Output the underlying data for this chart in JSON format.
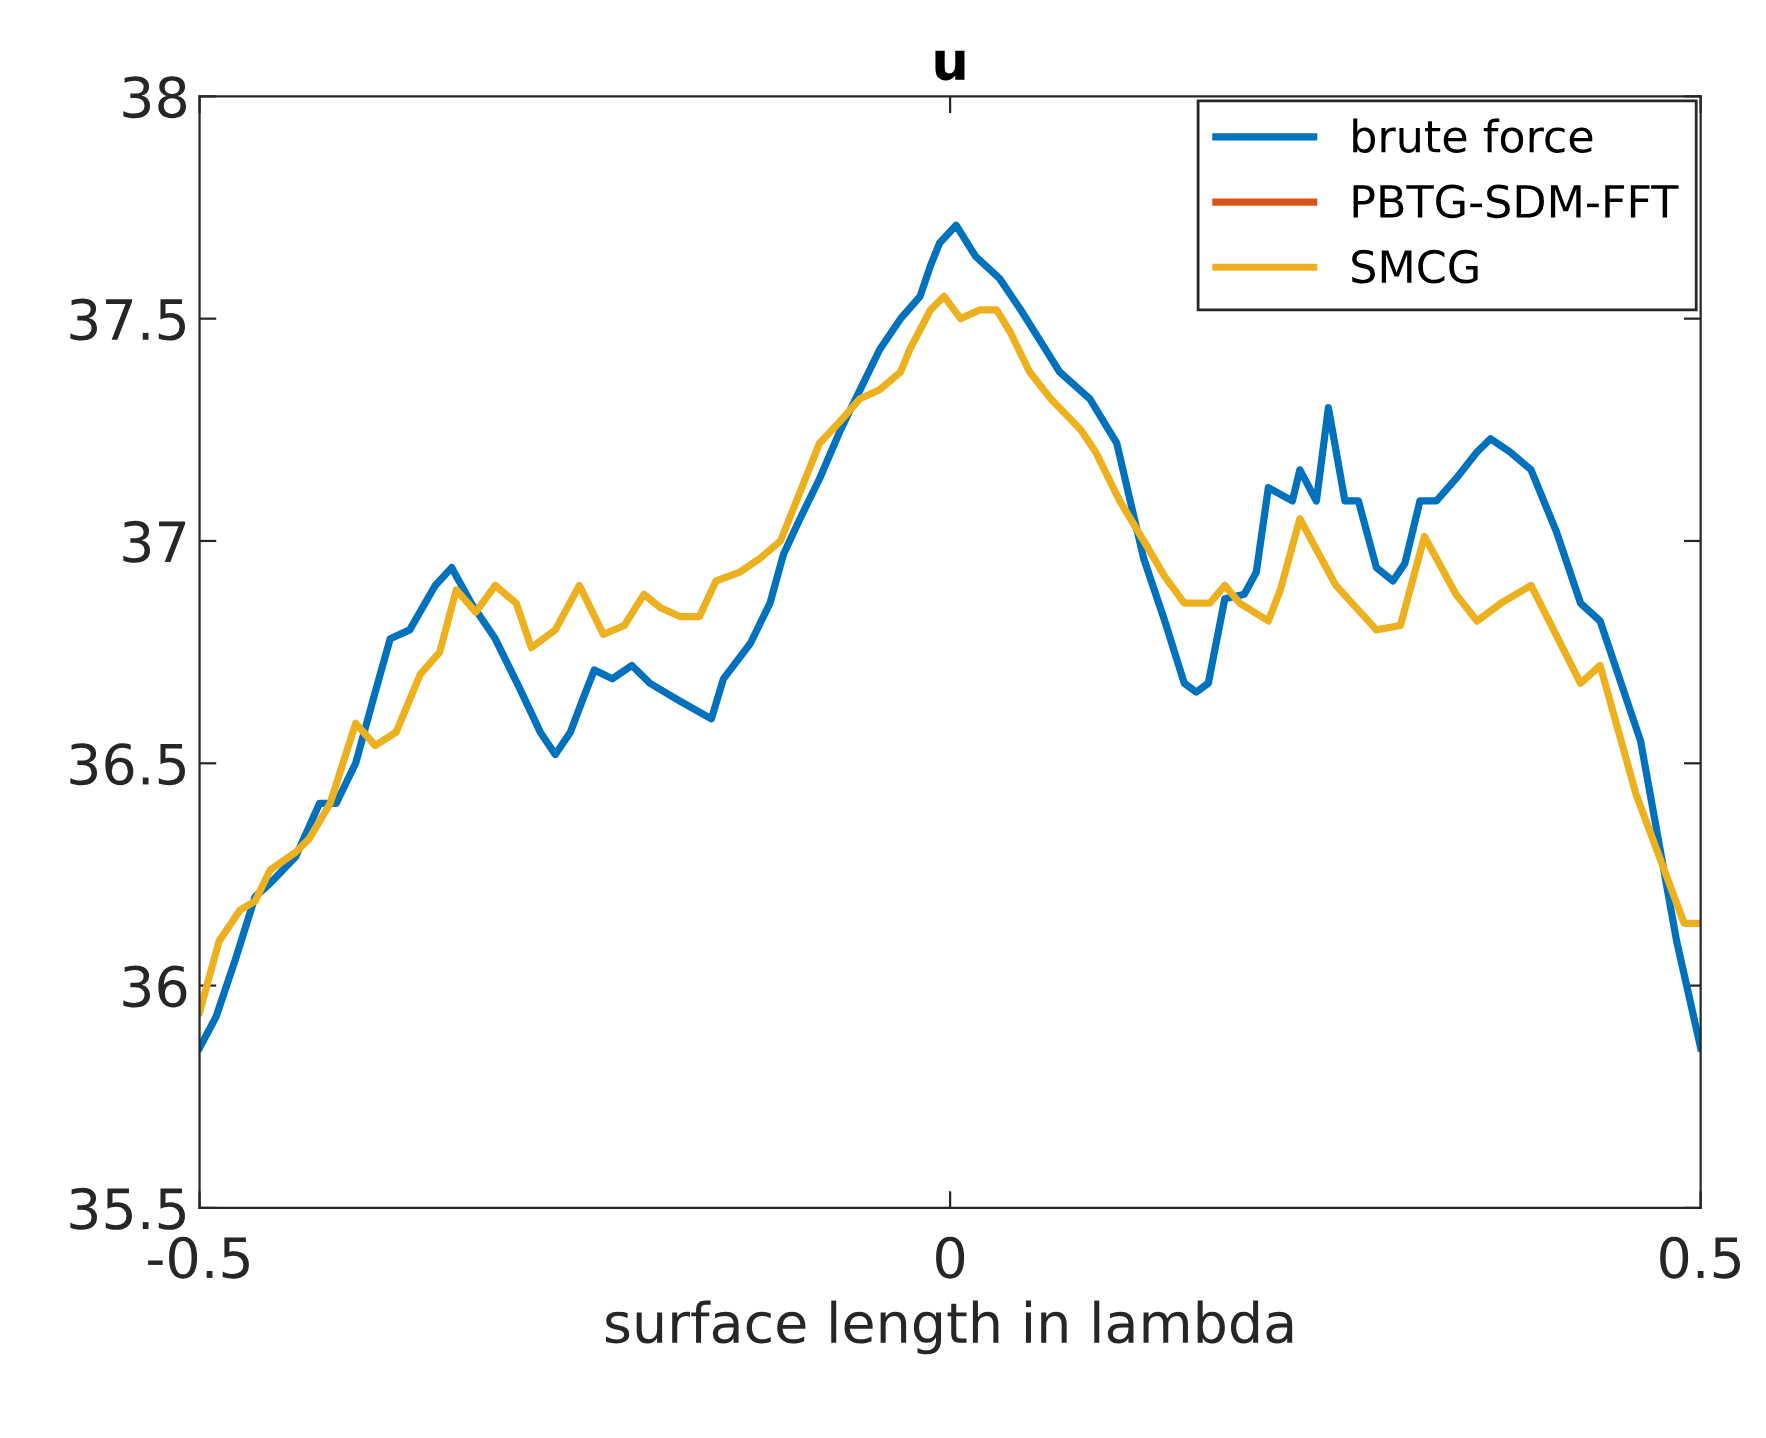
{
  "chart_data": {
    "type": "line",
    "title": "u",
    "xlabel": "surface length in lambda",
    "xlim": [
      -0.5,
      0.5
    ],
    "xticks": [
      -0.5,
      0,
      0.5
    ],
    "ylim": [
      35.5,
      38
    ],
    "yticks": [
      35.5,
      36,
      36.5,
      37,
      37.5,
      38
    ],
    "grid": false,
    "legend": "top right",
    "marker": "none",
    "line_style": "solid",
    "series": [
      {
        "name": "brute force",
        "color": "#0072bd",
        "x": [
          -0.5,
          -0.489,
          -0.476,
          -0.463,
          -0.453,
          -0.436,
          -0.42,
          -0.409,
          -0.396,
          -0.383,
          -0.373,
          -0.36,
          -0.343,
          -0.332,
          -0.319,
          -0.303,
          -0.287,
          -0.273,
          -0.263,
          -0.253,
          -0.244,
          -0.237,
          -0.225,
          -0.212,
          -0.2,
          -0.18,
          -0.159,
          -0.151,
          -0.133,
          -0.12,
          -0.111,
          -0.1,
          -0.087,
          -0.073,
          -0.06,
          -0.047,
          -0.033,
          -0.02,
          -0.013,
          -0.007,
          0.004,
          0.017,
          0.033,
          0.047,
          0.06,
          0.073,
          0.093,
          0.111,
          0.12,
          0.129,
          0.143,
          0.156,
          0.164,
          0.172,
          0.183,
          0.196,
          0.204,
          0.212,
          0.228,
          0.233,
          0.244,
          0.252,
          0.263,
          0.272,
          0.284,
          0.295,
          0.303,
          0.313,
          0.324,
          0.337,
          0.351,
          0.36,
          0.373,
          0.387,
          0.404,
          0.42,
          0.433,
          0.46,
          0.484,
          0.5
        ],
        "values": [
          35.86,
          35.93,
          36.06,
          36.2,
          36.23,
          36.29,
          36.41,
          36.41,
          36.5,
          36.66,
          36.78,
          36.8,
          36.9,
          36.94,
          36.86,
          36.78,
          36.67,
          36.57,
          36.52,
          36.57,
          36.65,
          36.71,
          36.69,
          36.72,
          36.68,
          36.64,
          36.6,
          36.69,
          36.77,
          36.86,
          36.97,
          37.05,
          37.14,
          37.25,
          37.34,
          37.43,
          37.5,
          37.55,
          37.62,
          37.67,
          37.71,
          37.64,
          37.59,
          37.52,
          37.45,
          37.38,
          37.32,
          37.22,
          37.09,
          36.96,
          36.82,
          36.68,
          36.66,
          36.68,
          36.87,
          36.88,
          36.93,
          37.12,
          37.09,
          37.16,
          37.09,
          37.3,
          37.09,
          37.09,
          36.94,
          36.91,
          36.95,
          37.09,
          37.09,
          37.14,
          37.2,
          37.23,
          37.2,
          37.16,
          37.02,
          36.86,
          36.82,
          36.55,
          36.1,
          35.86
        ]
      },
      {
        "name": "PBTG-SDM-FFT",
        "color": "#d95319"
      },
      {
        "name": "SMCG",
        "color": "#edb120",
        "x": [
          -0.5,
          -0.487,
          -0.473,
          -0.463,
          -0.453,
          -0.436,
          -0.427,
          -0.413,
          -0.396,
          -0.383,
          -0.369,
          -0.353,
          -0.34,
          -0.329,
          -0.316,
          -0.303,
          -0.289,
          -0.279,
          -0.263,
          -0.247,
          -0.231,
          -0.217,
          -0.204,
          -0.193,
          -0.18,
          -0.167,
          -0.156,
          -0.14,
          -0.127,
          -0.113,
          -0.1,
          -0.087,
          -0.073,
          -0.06,
          -0.047,
          -0.033,
          -0.027,
          -0.013,
          -0.004,
          0.007,
          0.02,
          0.031,
          0.04,
          0.053,
          0.067,
          0.087,
          0.097,
          0.113,
          0.129,
          0.143,
          0.156,
          0.167,
          0.173,
          0.183,
          0.193,
          0.212,
          0.22,
          0.233,
          0.257,
          0.284,
          0.3,
          0.316,
          0.337,
          0.351,
          0.367,
          0.387,
          0.393,
          0.42,
          0.433,
          0.457,
          0.489,
          0.5
        ],
        "values": [
          35.94,
          36.1,
          36.17,
          36.19,
          36.26,
          36.3,
          36.33,
          36.41,
          36.59,
          36.54,
          36.57,
          36.7,
          36.75,
          36.89,
          36.84,
          36.9,
          36.86,
          36.76,
          36.8,
          36.9,
          36.79,
          36.81,
          36.88,
          36.85,
          36.83,
          36.83,
          36.91,
          36.93,
          36.96,
          37.0,
          37.11,
          37.22,
          37.27,
          37.32,
          37.34,
          37.38,
          37.43,
          37.52,
          37.55,
          37.5,
          37.52,
          37.52,
          37.47,
          37.38,
          37.32,
          37.25,
          37.2,
          37.09,
          37.0,
          36.92,
          36.86,
          36.86,
          36.86,
          36.9,
          36.86,
          36.82,
          36.89,
          37.05,
          36.9,
          36.8,
          36.81,
          37.01,
          36.88,
          36.82,
          36.86,
          36.9,
          36.86,
          36.68,
          36.72,
          36.43,
          36.14,
          36.14
        ]
      }
    ]
  }
}
